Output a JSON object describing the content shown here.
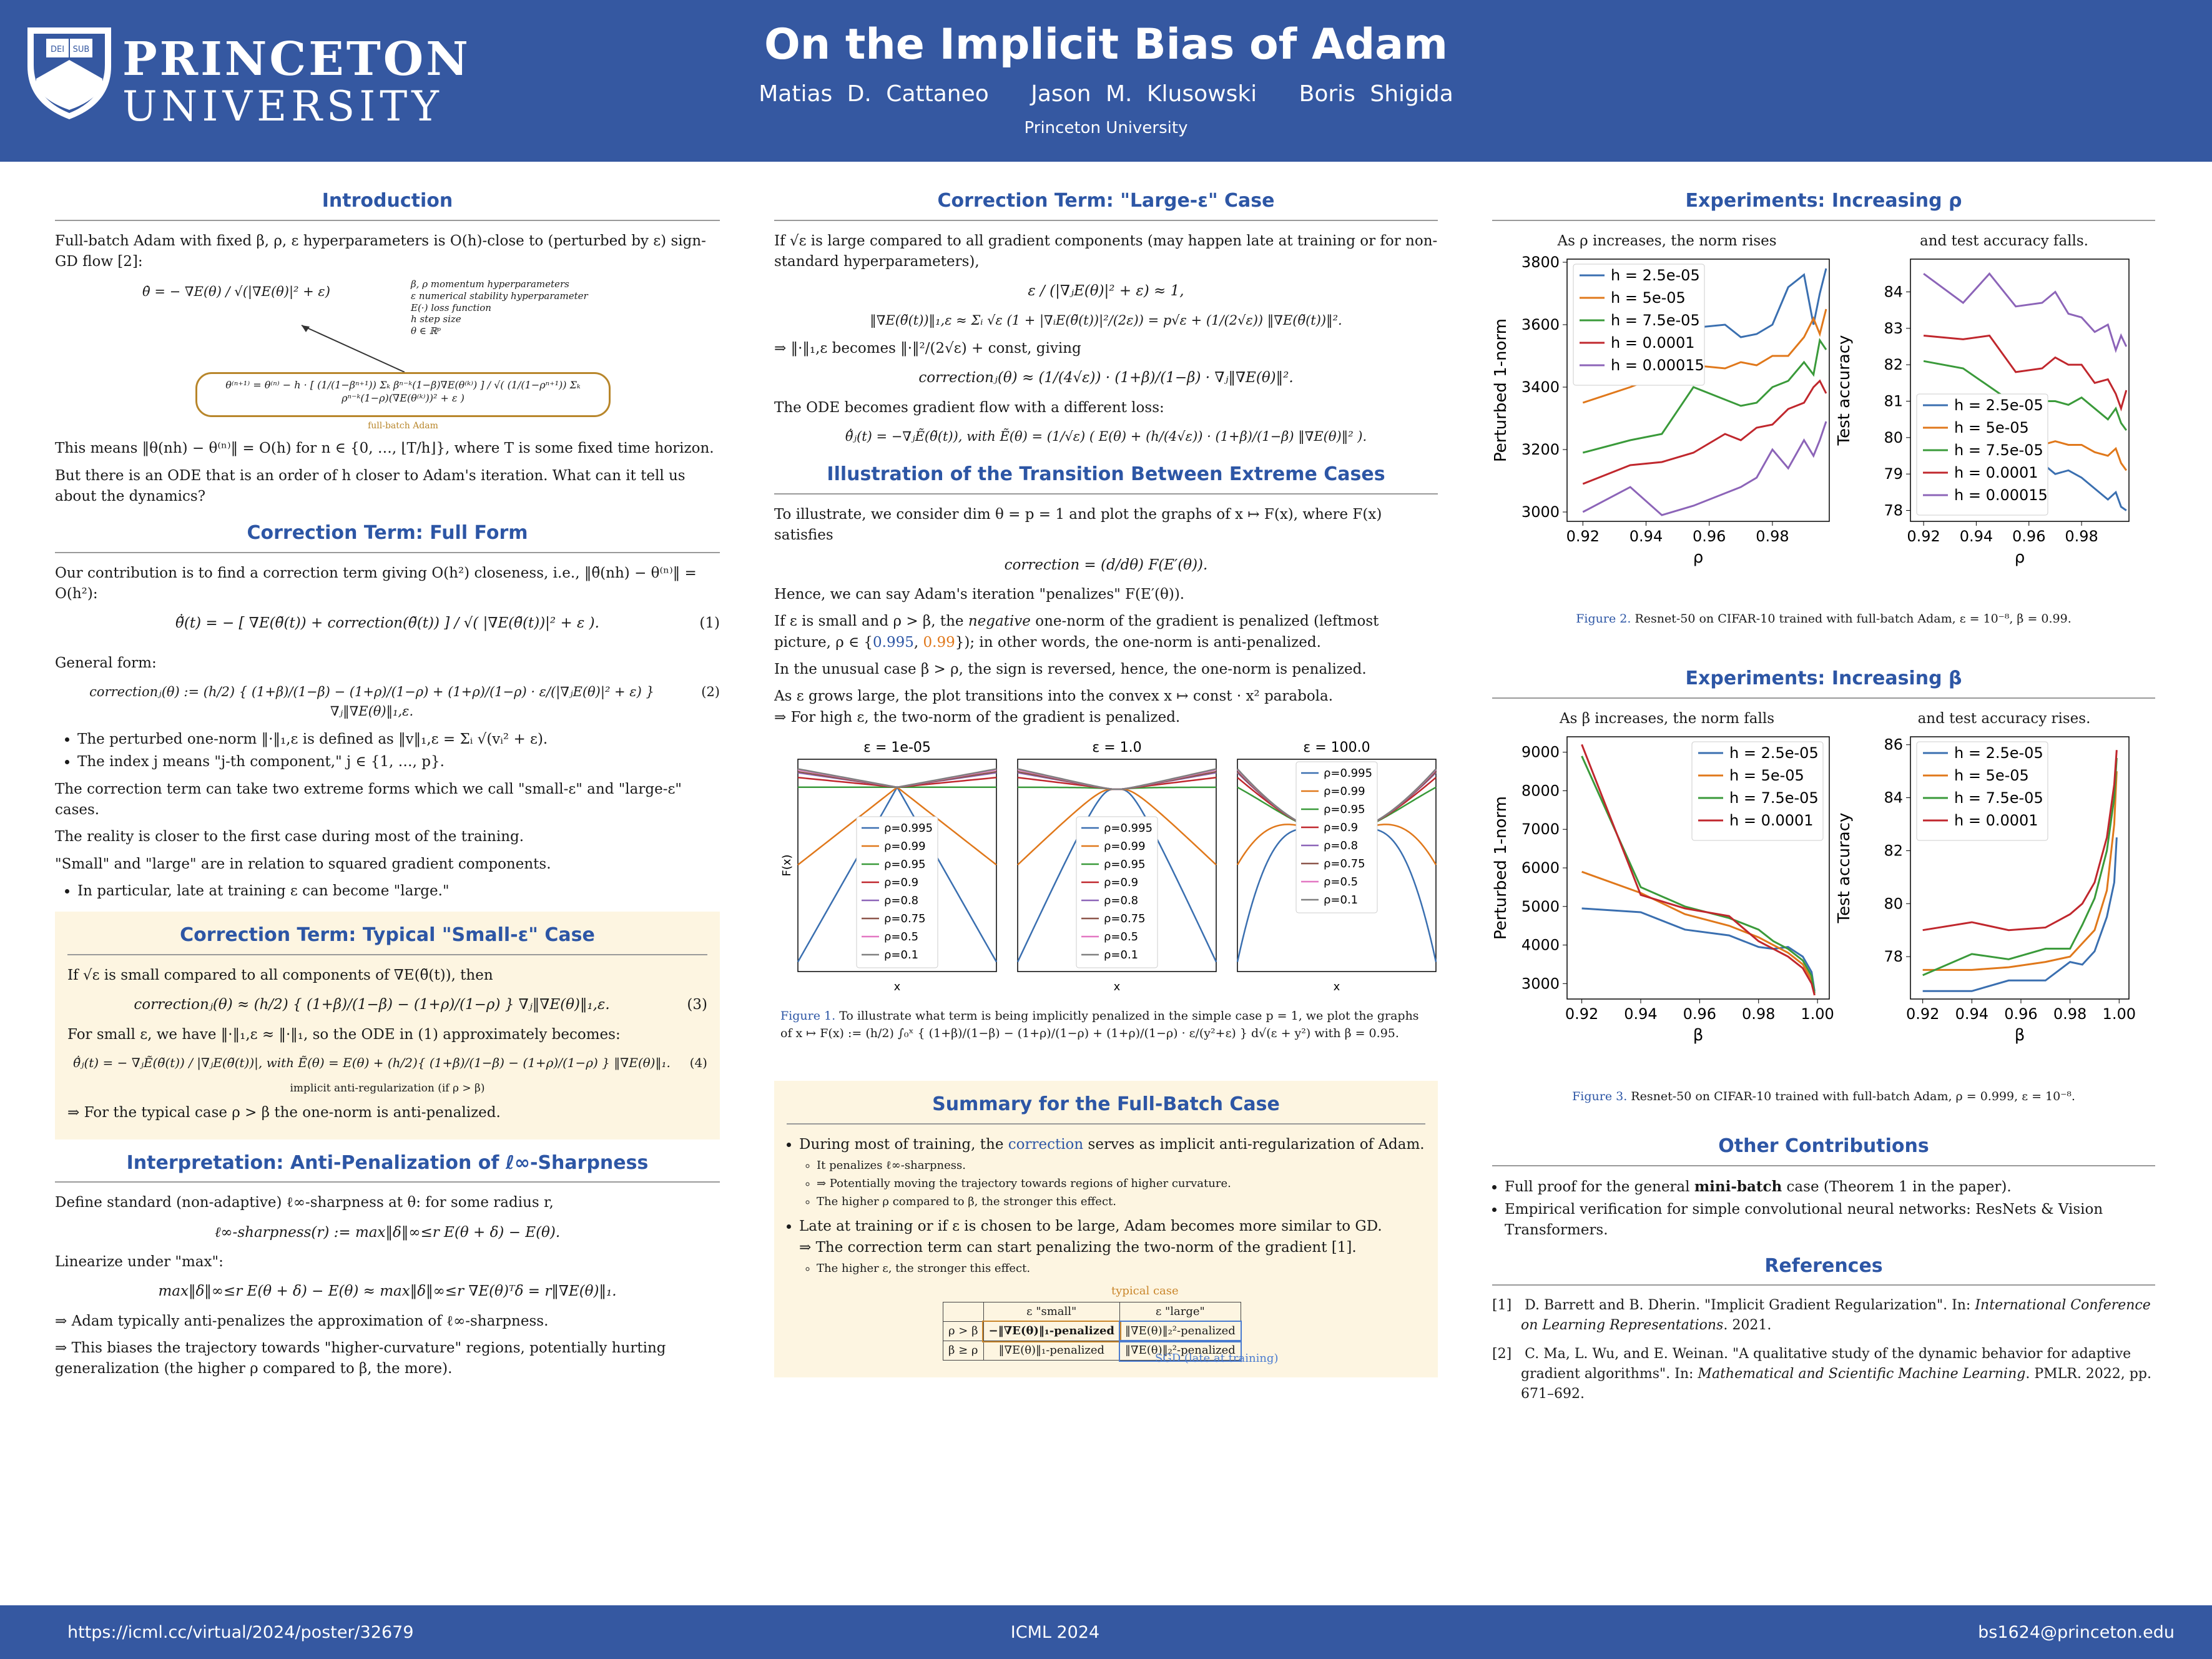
{
  "header": {
    "university_line1": "PRINCETON",
    "university_line2": "UNIVERSITY",
    "title": "On the Implicit Bias of Adam",
    "authors": [
      "Matias D. Cattaneo",
      "Jason M. Klusowski",
      "Boris Shigida"
    ],
    "affiliation": "Princeton University"
  },
  "footer": {
    "url": "https://icml.cc/virtual/2024/poster/32679",
    "venue": "ICML 2024",
    "email": "bs1624@princeton.edu"
  },
  "intro": {
    "title": "Introduction",
    "p1": "Full-batch Adam with fixed β, ρ, ε hyperparameters is O(h)-close to (perturbed by ε) sign-GD flow [2]:",
    "eq1": "θ̇ = − ∇E(θ) / √(|∇E(θ)|² + ε)",
    "legend": [
      "β, ρ momentum hyperparameters",
      "ε numerical stability hyperparameter",
      "E(·) loss function",
      "h step size",
      "θ ∈ ℝᵖ"
    ],
    "eq2": "θ⁽ⁿ⁺¹⁾ = θ⁽ⁿ⁾ − h · [ (1/(1−βⁿ⁺¹)) Σₖ βⁿ⁻ᵏ(1−β)∇E(θ⁽ᵏ⁾) ] / √( (1/(1−ρⁿ⁺¹)) Σₖ ρⁿ⁻ᵏ(1−ρ)(∇E(θ⁽ᵏ⁾))² + ε )",
    "eq2_label": "full-batch Adam",
    "p2": "This means ‖θ(nh) − θ⁽ⁿ⁾‖ = O(h) for n ∈ {0, …, ⌊T/h⌋}, where T is some fixed time horizon.",
    "p3": "But there is an ODE that is an order of h closer to Adam's iteration. What can it tell us about the dynamics?"
  },
  "full_form": {
    "title": "Correction Term: Full Form",
    "p1": "Our contribution is to find a correction term giving O(h²) closeness, i.e., ‖θ̃(nh) − θ⁽ⁿ⁾‖ = O(h²):",
    "eq1": "θ̃̇(t) = − [ ∇E(θ̃(t)) + correction(θ̃(t)) ] / √( |∇E(θ̃(t))|² + ε ).",
    "eq1_num": "(1)",
    "p2": "General form:",
    "eq2": "correctionⱼ(θ) := (h/2) { (1+β)/(1−β) − (1+ρ)/(1−ρ) + (1+ρ)/(1−ρ) · ε/(|∇ⱼE(θ)|² + ε) } ∇ⱼ‖∇E(θ)‖₁,ε.",
    "eq2_num": "(2)",
    "bullets": [
      "The perturbed one-norm ‖·‖₁,ε is defined as ‖v‖₁,ε = Σᵢ √(vᵢ² + ε).",
      "The index j means \"j-th component,\" j ∈ {1, …, p}."
    ],
    "p3": "The correction term can take two extreme forms which we call \"small-ε\" and \"large-ε\" cases.",
    "p4": "The reality is closer to the first case during most of the training.",
    "p5": "\"Small\" and \"large\" are in relation to squared gradient components.",
    "bullet3": "In particular, late at training ε can become \"large.\""
  },
  "small_eps": {
    "title": "Correction Term: Typical \"Small-ε\" Case",
    "p1": "If √ε is small compared to all components of ∇E(θ̃(t)), then",
    "eq1": "correctionⱼ(θ) ≈ (h/2) { (1+β)/(1−β) − (1+ρ)/(1−ρ) } ∇ⱼ‖∇E(θ)‖₁,ε.",
    "eq1_num": "(3)",
    "p2": "For small ε, we have ‖·‖₁,ε ≈ ‖·‖₁, so the ODE in (1) approximately becomes:",
    "eq2": "θ̃̇ⱼ(t) = − ∇ⱼẼ(θ̃(t)) / |∇ⱼE(θ̃(t))|,   with   Ẽ(θ) = E(θ) + (h/2){ (1+β)/(1−β) − (1+ρ)/(1−ρ) } ‖∇E(θ)‖₁.",
    "eq2_num": "(4)",
    "eq2_note": "implicit anti-regularization (if ρ > β)",
    "p3": "⇒ For the typical case ρ > β the one-norm is anti-penalized."
  },
  "interp": {
    "title": "Interpretation: Anti-Penalization of ℓ∞-Sharpness",
    "p1": "Define standard (non-adaptive) ℓ∞-sharpness at θ: for some radius r,",
    "eq1": "ℓ∞-sharpness(r) := max‖δ‖∞≤r E(θ + δ) − E(θ).",
    "p2": "Linearize under \"max\":",
    "eq2": "max‖δ‖∞≤r E(θ + δ) − E(θ) ≈ max‖δ‖∞≤r ∇E(θ)ᵀδ = r‖∇E(θ)‖₁.",
    "p3": "⇒ Adam typically anti-penalizes the approximation of ℓ∞-sharpness.",
    "p4": "⇒ This biases the trajectory towards \"higher-curvature\" regions, potentially hurting generalization (the higher ρ compared to β, the more)."
  },
  "large_eps": {
    "title": "Correction Term: \"Large-ε\" Case",
    "p1": "If √ε is large compared to all gradient components (may happen late at training or for non-standard hyperparameters),",
    "eq1": "ε / (|∇ⱼE(θ)|² + ε) ≈ 1,",
    "eq2": "‖∇E(θ̃(t))‖₁,ε ≈ Σᵢ √ε (1 + |∇ᵢE(θ̃(t))|²/(2ε)) = p√ε + (1/(2√ε)) ‖∇E(θ̃(t))‖².",
    "p2": "⇒ ‖·‖₁,ε becomes ‖·‖²/(2√ε) + const, giving",
    "eq3": "correctionⱼ(θ) ≈ (1/(4√ε)) · (1+β)/(1−β) · ∇ⱼ‖∇E(θ)‖².",
    "p3": "The ODE becomes gradient flow with a different loss:",
    "eq4": "θ̃̇ⱼ(t) = −∇ⱼẼ(θ̃(t)),   with   Ẽ(θ) = (1/√ε) ( E(θ) + (h/(4√ε)) · (1+β)/(1−β) ‖∇E(θ)‖² )."
  },
  "transition": {
    "title": "Illustration of the Transition Between Extreme Cases",
    "p1": "To illustrate, we consider dim θ = p = 1 and plot the graphs of x ↦ F(x), where F(x) satisfies",
    "eq1": "correction = (d/dθ) F(E′(θ)).",
    "p2": "Hence, we can say Adam's iteration \"penalizes\" F(E′(θ)).",
    "p3a": "If ε is small and ρ > β, the ",
    "p3b": "negative",
    "p3c": " one-norm of the gradient is penalized (leftmost picture, ρ ∈ {",
    "rho1": "0.995",
    "rho2": "0.99",
    "p3d": "}); in other words, the one-norm is anti-penalized.",
    "p4": "In the unusual case β > ρ, the sign is reversed, hence, the one-norm is penalized.",
    "p5": "As ε grows large, the plot transitions into the convex x ↦ const · x² parabola.",
    "p6": "⇒ For high ε, the two-norm of the gradient is penalized.",
    "caption_label": "Figure 1.",
    "caption": "To illustrate what term is being implicitly penalized in the simple case p = 1, we plot the graphs of x ↦ F(x) := (h/2) ∫₀ˣ { (1+β)/(1−β) − (1+ρ)/(1−ρ) + (1+ρ)/(1−ρ) · ε/(y²+ε) } d√(ε + y²) with β = 0.95."
  },
  "summary": {
    "title": "Summary for the Full-Batch Case",
    "b1a": "During most of training, the ",
    "b1b": "correction",
    "b1c": " serves as implicit anti-regularization of Adam.",
    "sub1": [
      "It penalizes ℓ∞-sharpness.",
      "⇒ Potentially moving the trajectory towards regions of higher curvature.",
      "The higher ρ compared to β, the stronger this effect."
    ],
    "b2": "Late at training or if ε is chosen to be large, Adam becomes more similar to GD.",
    "b2b": "⇒ The correction term can start penalizing the two-norm of the gradient [1].",
    "sub2": [
      "The higher ε, the stronger this effect."
    ],
    "typical_label": "typical case",
    "sgd_label": "SGD (late at training)",
    "table": {
      "head": [
        "",
        "ε \"small\"",
        "ε \"large\""
      ],
      "rows": [
        [
          "ρ > β",
          "−‖∇E(θ)‖₁-penalized",
          "‖∇E(θ)‖₂²-penalized"
        ],
        [
          "β ≥ ρ",
          "‖∇E(θ)‖₁-penalized",
          "‖∇E(θ)‖₂²-penalized"
        ]
      ]
    }
  },
  "exp_rho": {
    "title": "Experiments: Increasing ρ",
    "sub_left": "As ρ increases, the norm rises",
    "sub_right": "and test accuracy falls.",
    "caption_label": "Figure 2.",
    "caption": "Resnet-50 on CIFAR-10 trained with full-batch Adam, ε = 10⁻⁸, β = 0.99."
  },
  "exp_beta": {
    "title": "Experiments: Increasing β",
    "sub_left": "As β increases, the norm falls",
    "sub_right": "and test accuracy rises.",
    "caption_label": "Figure 3.",
    "caption": "Resnet-50 on CIFAR-10 trained with full-batch Adam, ρ = 0.999, ε = 10⁻⁸."
  },
  "other": {
    "title": "Other Contributions",
    "b1a": "Full proof for the general ",
    "b1b": "mini-batch",
    "b1c": " case (Theorem 1 in the paper).",
    "b2": "Empirical verification for simple convolutional neural networks: ResNets & Vision Transformers."
  },
  "refs": {
    "title": "References",
    "items": [
      {
        "num": "[1]",
        "text": "D. Barrett and B. Dherin. \"Implicit Gradient Regularization\". In: ",
        "venue": "International Conference on Learning Representations",
        "rest": ". 2021."
      },
      {
        "num": "[2]",
        "text": "C. Ma, L. Wu, and E. Weinan. \"A qualitative study of the dynamic behavior for adaptive gradient algorithms\". In: ",
        "venue": "Mathematical and Scientific Machine Learning",
        "rest": ". PMLR. 2022, pp. 671–692."
      }
    ]
  },
  "colors": {
    "header": "#3558a1",
    "section_title": "#2d56a5",
    "box": "#fdf5e1",
    "s1": "#3a6fb0",
    "s2": "#e0781b",
    "s3": "#3a9a3a",
    "s4": "#c0272d",
    "s5": "#8c64b8"
  },
  "chart_data": [
    {
      "type": "line",
      "id": "fig1a",
      "title": "ε = 1e-05",
      "ylabel": "F(x)",
      "xlabel": "x",
      "series": [
        {
          "name": "ρ=0.995"
        },
        {
          "name": "ρ=0.99"
        },
        {
          "name": "ρ=0.95"
        },
        {
          "name": "ρ=0.9"
        },
        {
          "name": "ρ=0.8"
        },
        {
          "name": "ρ=0.75"
        },
        {
          "name": "ρ=0.5"
        },
        {
          "name": "ρ=0.1"
        }
      ],
      "legend": "lower-center"
    },
    {
      "type": "line",
      "id": "fig1b",
      "title": "ε = 1.0",
      "ylabel": "",
      "xlabel": "x",
      "series": [
        {
          "name": "ρ=0.995"
        },
        {
          "name": "ρ=0.99"
        },
        {
          "name": "ρ=0.95"
        },
        {
          "name": "ρ=0.9"
        },
        {
          "name": "ρ=0.8"
        },
        {
          "name": "ρ=0.75"
        },
        {
          "name": "ρ=0.5"
        },
        {
          "name": "ρ=0.1"
        }
      ],
      "legend": "lower-center"
    },
    {
      "type": "line",
      "id": "fig1c",
      "title": "ε = 100.0",
      "ylabel": "",
      "xlabel": "x",
      "series": [
        {
          "name": "ρ=0.995"
        },
        {
          "name": "ρ=0.99"
        },
        {
          "name": "ρ=0.95"
        },
        {
          "name": "ρ=0.9"
        },
        {
          "name": "ρ=0.8"
        },
        {
          "name": "ρ=0.75"
        },
        {
          "name": "ρ=0.5"
        },
        {
          "name": "ρ=0.1"
        }
      ],
      "legend": "upper-center"
    },
    {
      "type": "line",
      "id": "rho_norm",
      "xlabel": "ρ",
      "ylabel": "Perturbed 1-norm",
      "xlim": [
        0.915,
        0.998
      ],
      "ylim": [
        2970,
        3810
      ],
      "xticks": [
        "0.92",
        "0.94",
        "0.96",
        "0.98"
      ],
      "yticks": [
        "3000",
        "3200",
        "3400",
        "3600",
        "3800"
      ],
      "x": [
        0.92,
        0.935,
        0.945,
        0.955,
        0.965,
        0.97,
        0.975,
        0.98,
        0.985,
        0.99,
        0.993,
        0.995,
        0.997
      ],
      "series": [
        {
          "name": "h = 2.5e-05",
          "values": [
            3620,
            3640,
            3580,
            3590,
            3600,
            3560,
            3570,
            3600,
            3720,
            3760,
            3600,
            3700,
            3780
          ]
        },
        {
          "name": "h = 5e-05",
          "values": [
            3350,
            3400,
            3440,
            3470,
            3460,
            3480,
            3470,
            3500,
            3500,
            3560,
            3620,
            3570,
            3650
          ]
        },
        {
          "name": "h = 7.5e-05",
          "values": [
            3190,
            3230,
            3250,
            3400,
            3360,
            3340,
            3350,
            3400,
            3420,
            3480,
            3440,
            3550,
            3520
          ]
        },
        {
          "name": "h = 0.0001",
          "values": [
            3090,
            3150,
            3160,
            3190,
            3250,
            3230,
            3270,
            3280,
            3330,
            3350,
            3400,
            3420,
            3380
          ]
        },
        {
          "name": "h = 0.00015",
          "values": [
            3000,
            3080,
            2990,
            3020,
            3060,
            3080,
            3110,
            3200,
            3140,
            3230,
            3180,
            3230,
            3290
          ]
        }
      ],
      "legend": "upper-left"
    },
    {
      "type": "line",
      "id": "rho_acc",
      "xlabel": "ρ",
      "ylabel": "Test accuracy",
      "xlim": [
        0.915,
        0.998
      ],
      "ylim": [
        77.7,
        84.9
      ],
      "xticks": [
        "0.92",
        "0.94",
        "0.96",
        "0.98"
      ],
      "yticks": [
        "78",
        "79",
        "80",
        "81",
        "82",
        "83",
        "84"
      ],
      "x": [
        0.92,
        0.935,
        0.945,
        0.955,
        0.965,
        0.97,
        0.975,
        0.98,
        0.985,
        0.99,
        0.993,
        0.995,
        0.997
      ],
      "series": [
        {
          "name": "h = 2.5e-05",
          "values": [
            80.8,
            80.6,
            80.4,
            80.0,
            79.3,
            79.0,
            79.1,
            78.9,
            78.6,
            78.3,
            78.5,
            78.1,
            78.0
          ]
        },
        {
          "name": "h = 5e-05",
          "values": [
            79.6,
            79.6,
            79.7,
            79.5,
            79.8,
            79.9,
            79.8,
            79.8,
            79.6,
            79.5,
            79.7,
            79.3,
            79.1
          ]
        },
        {
          "name": "h = 7.5e-05",
          "values": [
            82.1,
            81.9,
            81.4,
            80.9,
            81.0,
            81.0,
            80.9,
            81.1,
            80.8,
            80.5,
            80.8,
            80.4,
            80.2
          ]
        },
        {
          "name": "h = 0.0001",
          "values": [
            82.8,
            82.7,
            82.8,
            81.8,
            81.9,
            82.2,
            82.0,
            82.0,
            81.5,
            81.6,
            81.2,
            80.8,
            81.3
          ]
        },
        {
          "name": "h = 0.00015",
          "values": [
            84.5,
            83.7,
            84.5,
            83.6,
            83.7,
            84.0,
            83.4,
            83.3,
            82.9,
            83.1,
            82.4,
            82.8,
            82.5
          ]
        }
      ],
      "legend": "lower-left"
    },
    {
      "type": "line",
      "id": "beta_norm",
      "xlabel": "β",
      "ylabel": "Perturbed 1-norm",
      "xlim": [
        0.915,
        1.004
      ],
      "ylim": [
        2600,
        9400
      ],
      "xticks": [
        "0.92",
        "0.94",
        "0.96",
        "0.98",
        "1.00"
      ],
      "yticks": [
        "3000",
        "4000",
        "5000",
        "6000",
        "7000",
        "8000",
        "9000"
      ],
      "x": [
        0.92,
        0.94,
        0.955,
        0.97,
        0.98,
        0.985,
        0.99,
        0.995,
        0.998,
        0.999
      ],
      "series": [
        {
          "name": "h = 2.5e-05",
          "values": [
            4950,
            4850,
            4400,
            4250,
            3950,
            3900,
            3950,
            3700,
            3300,
            2800
          ]
        },
        {
          "name": "h = 5e-05",
          "values": [
            5900,
            5350,
            4800,
            4500,
            4200,
            4000,
            3800,
            3500,
            3100,
            2700
          ]
        },
        {
          "name": "h = 7.5e-05",
          "values": [
            8900,
            5500,
            5000,
            4700,
            4400,
            4100,
            3900,
            3600,
            3200,
            2750
          ]
        },
        {
          "name": "h = 0.0001",
          "values": [
            9200,
            5300,
            4950,
            4750,
            4100,
            3900,
            3700,
            3400,
            3000,
            2700
          ]
        }
      ],
      "legend": "upper-right"
    },
    {
      "type": "line",
      "id": "beta_acc",
      "xlabel": "β",
      "ylabel": "Test accuracy",
      "xlim": [
        0.915,
        1.004
      ],
      "ylim": [
        76.4,
        86.3
      ],
      "xticks": [
        "0.92",
        "0.94",
        "0.96",
        "0.98",
        "1.00"
      ],
      "yticks": [
        "78",
        "80",
        "82",
        "84",
        "86"
      ],
      "x": [
        0.92,
        0.94,
        0.955,
        0.97,
        0.98,
        0.985,
        0.99,
        0.995,
        0.998,
        0.999
      ],
      "series": [
        {
          "name": "h = 2.5e-05",
          "values": [
            76.7,
            76.7,
            77.1,
            77.1,
            77.8,
            77.7,
            78.2,
            79.5,
            80.8,
            82.5
          ]
        },
        {
          "name": "h = 5e-05",
          "values": [
            77.5,
            77.5,
            77.6,
            77.8,
            78.0,
            78.5,
            79.0,
            80.5,
            83.0,
            85.0
          ]
        },
        {
          "name": "h = 7.5e-05",
          "values": [
            77.3,
            78.1,
            77.9,
            78.3,
            78.3,
            79.2,
            80.2,
            82.0,
            84.0,
            85.5
          ]
        },
        {
          "name": "h = 0.0001",
          "values": [
            79.0,
            79.3,
            79.0,
            79.1,
            79.6,
            80.0,
            80.8,
            82.5,
            84.5,
            85.8
          ]
        }
      ],
      "legend": "upper-left"
    }
  ]
}
